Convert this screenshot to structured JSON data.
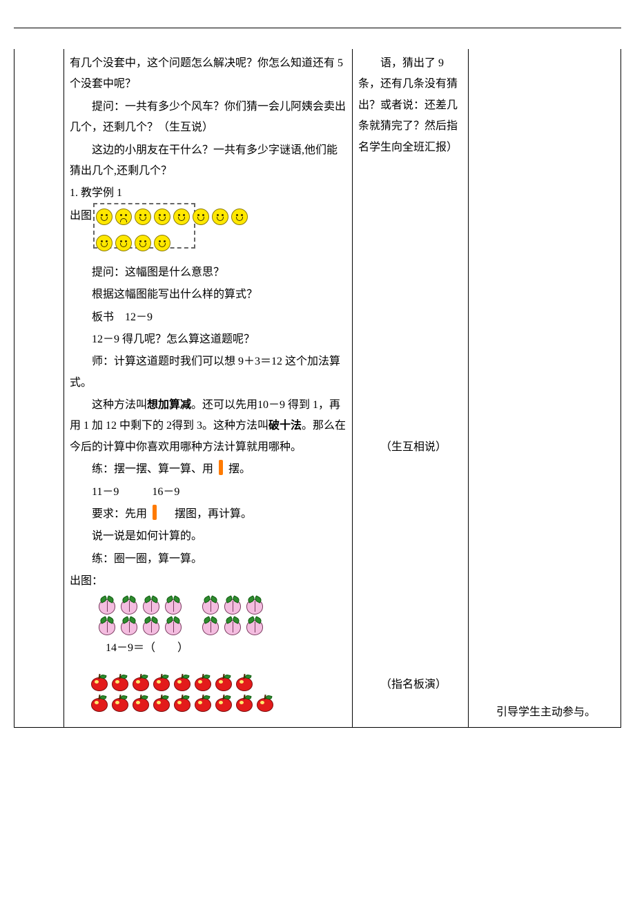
{
  "colors": {
    "text": "#000000",
    "border": "#000000",
    "smiley_fill": "#ffe800",
    "smiley_stroke": "#8a7a00",
    "peach_fill": "#f4bde0",
    "peach_stroke": "#7a3a5f",
    "leaf_fill": "#2e8b2e",
    "leaf_stroke": "#0d5a0d",
    "apple_fill": "#e31b1b",
    "apple_stroke": "#7a0e0e",
    "apple_shine": "#ffe86b",
    "stick": "#ff7a00",
    "dash": "#666666"
  },
  "col2": {
    "p1": "有几个没套中，这个问题怎么解决呢？你怎么知道还有 5 个没套中呢？",
    "p2": "提问：一共有多少个风车？你们猜一会儿阿姨会卖出几个，还剩几个？（生互说）",
    "p3": "这边的小朋友在干什么？一共有多少字谜语,他们能猜出几个,还剩几个？",
    "s1": "1. 教学例 1",
    "s2_label": "出图",
    "smileys": {
      "row1_count": 8,
      "row2_count": 4,
      "sad_index_row1": 1,
      "dashed_cols_row1": 5,
      "dashed_cols_row2": 4
    },
    "p4": "提问：这幅图是什么意思？",
    "p5": "根据这幅图能写出什么样的算式？",
    "p6": "板书　12－9",
    "p7": "12－9 得几呢？怎么算这道题呢？",
    "p8": "师：计算这道题时我们可以想 9＋3＝12 这个加法算式。",
    "p9a": "这种方法叫",
    "p9b": "想加算减",
    "p9c": "。还可以先用10－9 得到 1，再用 1 加 12 中剩下的 2得到 3。这种方法叫",
    "p9d": "破十法",
    "p9e": "。那么在今后的计算中你喜欢用哪种方法计算就用哪种。",
    "p10a": "练：摆一摆、算一算、用",
    "p10b": "摆。",
    "p11": "11－9　　　16－9",
    "p12a": "要求：先用",
    "p12b": "摆图，再计算。",
    "p13": "说一说是如何计算的。",
    "p14": "练：圈一圈，算一算。",
    "s3": "出图：",
    "peaches": {
      "row1_groupA": 4,
      "row1_groupB": 3,
      "row2_groupA": 4,
      "row2_groupB": 3
    },
    "eq1": "14－9＝（　　）",
    "apples": {
      "row1": 8,
      "row2": 9
    }
  },
  "col3": {
    "p1": "语，猜出了 9条，还有几条没有猜出？或者说：还差几条就猜完了？然后指名学生向全班汇报）",
    "p2": "（生互相说）",
    "p3": "（指名板演）"
  },
  "col4": {
    "p1": "引导学生主动参与。"
  }
}
